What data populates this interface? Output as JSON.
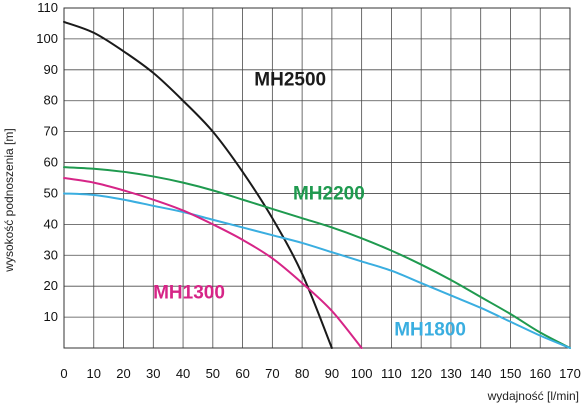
{
  "chart_data": {
    "type": "line",
    "title": "",
    "xlabel": "wydajność [l/min]",
    "ylabel": "wysokość podnoszenia [m]",
    "xlim": [
      0,
      170
    ],
    "ylim": [
      0,
      110
    ],
    "x_ticks": [
      0,
      10,
      20,
      30,
      40,
      50,
      60,
      70,
      80,
      90,
      100,
      110,
      120,
      130,
      140,
      150,
      160,
      170
    ],
    "y_ticks": [
      10,
      20,
      30,
      40,
      50,
      60,
      70,
      80,
      90,
      100,
      110
    ],
    "grid": true,
    "legend": "inline labels next to curves",
    "series": [
      {
        "name": "MH2500",
        "color": "#1a1a1a",
        "points": [
          [
            0,
            105.5
          ],
          [
            10,
            102
          ],
          [
            20,
            96
          ],
          [
            30,
            89
          ],
          [
            40,
            80
          ],
          [
            50,
            70
          ],
          [
            60,
            57
          ],
          [
            70,
            42
          ],
          [
            80,
            24
          ],
          [
            90,
            0
          ]
        ]
      },
      {
        "name": "MH2200",
        "color": "#1f9a4f",
        "points": [
          [
            0,
            58.5
          ],
          [
            10,
            58
          ],
          [
            20,
            57
          ],
          [
            30,
            55.5
          ],
          [
            40,
            53.5
          ],
          [
            50,
            51
          ],
          [
            60,
            48
          ],
          [
            70,
            45
          ],
          [
            80,
            42
          ],
          [
            90,
            39
          ],
          [
            100,
            35.5
          ],
          [
            110,
            31.5
          ],
          [
            120,
            27
          ],
          [
            130,
            22
          ],
          [
            140,
            16.5
          ],
          [
            150,
            11
          ],
          [
            160,
            5
          ],
          [
            170,
            0
          ]
        ]
      },
      {
        "name": "MH1800",
        "color": "#3aaee0",
        "points": [
          [
            0,
            50
          ],
          [
            10,
            49.5
          ],
          [
            20,
            48
          ],
          [
            30,
            46
          ],
          [
            40,
            44
          ],
          [
            50,
            41.5
          ],
          [
            60,
            39
          ],
          [
            70,
            36.5
          ],
          [
            80,
            34
          ],
          [
            90,
            31
          ],
          [
            100,
            28
          ],
          [
            110,
            25
          ],
          [
            120,
            21
          ],
          [
            130,
            17
          ],
          [
            140,
            13
          ],
          [
            150,
            8.5
          ],
          [
            160,
            4
          ],
          [
            170,
            0
          ]
        ]
      },
      {
        "name": "MH1300",
        "color": "#d62587",
        "points": [
          [
            0,
            55
          ],
          [
            10,
            53.5
          ],
          [
            20,
            51
          ],
          [
            30,
            48
          ],
          [
            40,
            44.5
          ],
          [
            50,
            40
          ],
          [
            60,
            35
          ],
          [
            70,
            29
          ],
          [
            80,
            21
          ],
          [
            90,
            12
          ],
          [
            100,
            0
          ]
        ]
      }
    ],
    "labels": [
      {
        "series": "MH2500",
        "text": "MH2500",
        "x": 76,
        "y": 85
      },
      {
        "series": "MH2200",
        "text": "MH2200",
        "x": 89,
        "y": 48
      },
      {
        "series": "MH1300",
        "text": "MH1300",
        "x": 42,
        "y": 16
      },
      {
        "series": "MH1800",
        "text": "MH1800",
        "x": 123,
        "y": 4
      }
    ]
  }
}
